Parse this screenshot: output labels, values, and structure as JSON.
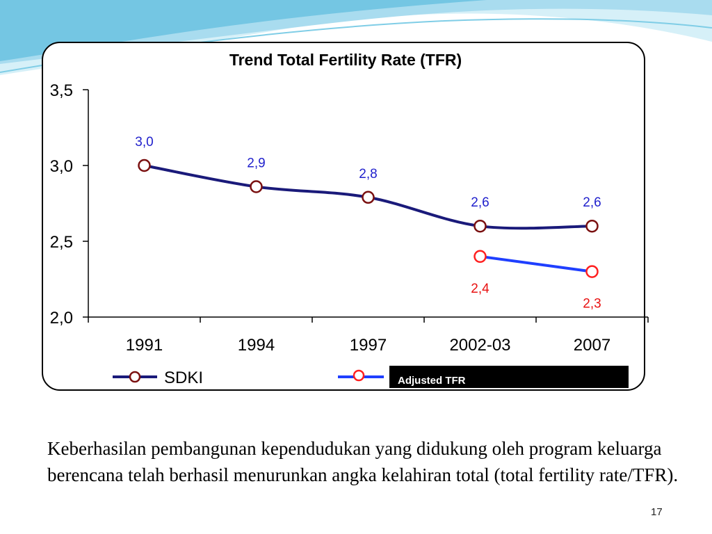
{
  "colors": {
    "sdki_line": "#1a1a7a",
    "sdki_marker": "#7a1010",
    "adjusted_line": "#1f3fff",
    "adjusted_marker": "#ff1f1f",
    "sdki_label": "#1f1fcc",
    "adjusted_label": "#e81010",
    "wave_light": "#bfe7f3",
    "wave_mid": "#74c6e3"
  },
  "chart_data": {
    "type": "line",
    "title": "Trend Total Fertility Rate (TFR)",
    "xlabel": "",
    "ylabel": "",
    "categories": [
      "1991",
      "1994",
      "1997",
      "2002-03",
      "2007"
    ],
    "ylim": [
      2.0,
      3.5
    ],
    "yticks": [
      2.0,
      2.5,
      3.0,
      3.5
    ],
    "ytick_labels": [
      "2,0",
      "2,5",
      "3,0",
      "3,5"
    ],
    "grid": false,
    "legend_position": "bottom",
    "series": [
      {
        "name": "SDKI",
        "values": [
          3.0,
          2.86,
          2.79,
          2.6,
          2.6
        ],
        "data_labels": [
          "3,0",
          "2,9",
          "2,8",
          "2,6",
          "2,6"
        ]
      },
      {
        "name": "Adjusted TFR",
        "values": [
          null,
          null,
          null,
          2.4,
          2.3
        ],
        "data_labels": [
          null,
          null,
          null,
          "2,4",
          "2,3"
        ]
      }
    ]
  },
  "caption": "Keberhasilan pembangunan kependudukan yang didukung oleh program keluarga berencana telah berhasil menurunkan angka kelahiran total (total fertility rate/TFR).",
  "page_number": "17"
}
